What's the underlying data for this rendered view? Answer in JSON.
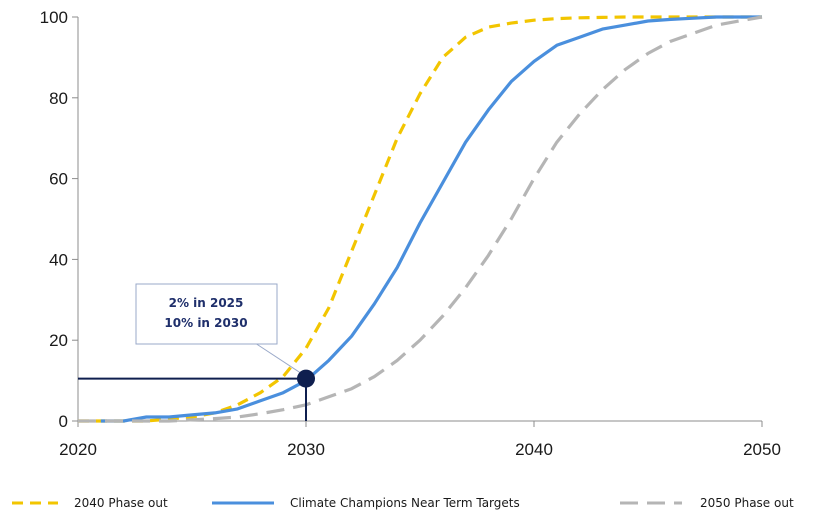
{
  "chart_data": {
    "type": "line",
    "title": "",
    "xlabel": "",
    "ylabel": "",
    "xlim": [
      2020,
      2050
    ],
    "ylim": [
      0,
      100
    ],
    "x_ticks": [
      2020,
      2030,
      2040,
      2050
    ],
    "y_ticks": [
      0,
      20,
      40,
      60,
      80,
      100
    ],
    "grid": false,
    "legend_position": "bottom",
    "series": [
      {
        "name": "2040 Phase out",
        "color": "#f2c500",
        "style": "dashed",
        "x": [
          2020,
          2021,
          2022,
          2023,
          2024,
          2025,
          2026,
          2027,
          2028,
          2029,
          2030,
          2031,
          2032,
          2033,
          2034,
          2035,
          2036,
          2037,
          2038,
          2039,
          2040,
          2041,
          2042,
          2043,
          2044,
          2045,
          2046,
          2047,
          2048,
          2049,
          2050
        ],
        "values": [
          0,
          0,
          0,
          0,
          0.5,
          1,
          2,
          4,
          7,
          11,
          18,
          28,
          42,
          56,
          70,
          81,
          90,
          95,
          97.5,
          98.5,
          99.2,
          99.6,
          99.8,
          99.9,
          100,
          100,
          100,
          100,
          100,
          100,
          100
        ]
      },
      {
        "name": "Climate Champions Near Term Targets",
        "color": "#4a8fdd",
        "style": "solid",
        "x": [
          2021,
          2022,
          2023,
          2024,
          2025,
          2026,
          2027,
          2028,
          2029,
          2030,
          2031,
          2032,
          2033,
          2034,
          2035,
          2036,
          2037,
          2038,
          2039,
          2040,
          2041,
          2042,
          2043,
          2044,
          2045,
          2046,
          2047,
          2048,
          2049,
          2050
        ],
        "values": [
          0,
          0,
          1,
          1,
          1.5,
          2,
          3,
          5,
          7,
          10,
          15,
          21,
          29,
          38,
          49,
          59,
          69,
          77,
          84,
          89,
          93,
          95,
          97,
          98,
          99,
          99.4,
          99.7,
          100,
          100,
          100
        ]
      },
      {
        "name": "2050 Phase out",
        "color": "#b5b5b5",
        "style": "dashed",
        "x": [
          2020,
          2021,
          2022,
          2023,
          2024,
          2025,
          2026,
          2027,
          2028,
          2029,
          2030,
          2031,
          2032,
          2033,
          2034,
          2035,
          2036,
          2037,
          2038,
          2039,
          2040,
          2041,
          2042,
          2043,
          2044,
          2045,
          2046,
          2047,
          2048,
          2049,
          2050
        ],
        "values": [
          0,
          0,
          0,
          0,
          0,
          0.3,
          0.6,
          1,
          1.8,
          2.8,
          4,
          6,
          8,
          11,
          15,
          20,
          26,
          33,
          41,
          50,
          60,
          69,
          76,
          82,
          87,
          91,
          94,
          96,
          98,
          99,
          100
        ]
      }
    ],
    "annotation": {
      "lines": [
        "2% in 2025",
        "10% in 2030"
      ],
      "point": {
        "x": 2030,
        "y": 10.5
      },
      "color": "#0f1f4f"
    }
  }
}
